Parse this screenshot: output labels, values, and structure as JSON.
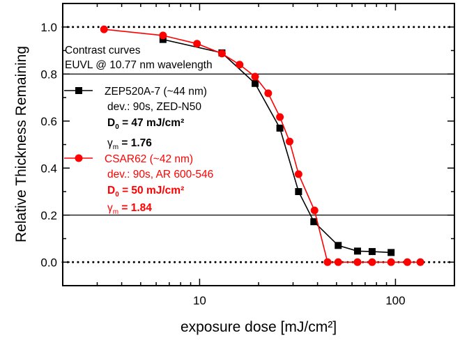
{
  "chart_data": {
    "type": "line",
    "xlabel": "exposure dose [mJ/cm²]",
    "ylabel": "Relative Thickness Remaining",
    "xscale": "log",
    "xlim": [
      2,
      200
    ],
    "ylim": [
      -0.1,
      1.1
    ],
    "xticks": [
      10,
      100
    ],
    "xtick_labels": [
      "10",
      "100"
    ],
    "yticks": [
      0.0,
      0.2,
      0.4,
      0.6,
      0.8,
      1.0
    ],
    "ytick_labels": [
      "0.0",
      "0.2",
      "0.4",
      "0.6",
      "0.8",
      "1.0"
    ],
    "reference_lines": [
      {
        "y": 1.0,
        "style": "dotted"
      },
      {
        "y": 0.0,
        "style": "dotted"
      },
      {
        "y": 0.8,
        "style": "solid"
      },
      {
        "y": 0.2,
        "style": "solid"
      }
    ],
    "annotation": {
      "line1": "Contrast curves",
      "line2": "EUVL @ 10.77 nm wavelength"
    },
    "series": [
      {
        "name": "ZEP520A-7 (~44 nm)",
        "color": "#000000",
        "marker": "square",
        "dev": "dev.: 90s, ZED-N50",
        "d0_symbol": "D",
        "d0_sub": "0",
        "d0_value": " = 47 mJ/cm²",
        "gamma_symbol": "γ",
        "gamma_sub": "m",
        "gamma_value": " = 1.76",
        "x": [
          6.5,
          13.0,
          19.2,
          25.7,
          32,
          38.3,
          51,
          64,
          76,
          95
        ],
        "y": [
          0.947,
          0.89,
          0.76,
          0.57,
          0.3,
          0.172,
          0.071,
          0.047,
          0.045,
          0.041
        ]
      },
      {
        "name": "CSAR62 (~42 nm)",
        "color": "#ff0000",
        "marker": "circle",
        "dev": "dev.: 90s, AR 600-546",
        "d0_symbol": "D",
        "d0_sub": "0",
        "d0_value": " = 50 mJ/cm²",
        "gamma_symbol": "γ",
        "gamma_sub": "m",
        "gamma_value": " = 1.84",
        "x": [
          3.25,
          6.5,
          9.7,
          13.0,
          16.0,
          19.2,
          22.4,
          25.7,
          28.8,
          32,
          38.6,
          45,
          51,
          64,
          76,
          95,
          115,
          134
        ],
        "y": [
          0.99,
          0.964,
          0.929,
          0.887,
          0.84,
          0.789,
          0.718,
          0.617,
          0.513,
          0.374,
          0.22,
          0,
          0,
          0,
          0,
          0,
          0,
          0
        ]
      }
    ]
  }
}
